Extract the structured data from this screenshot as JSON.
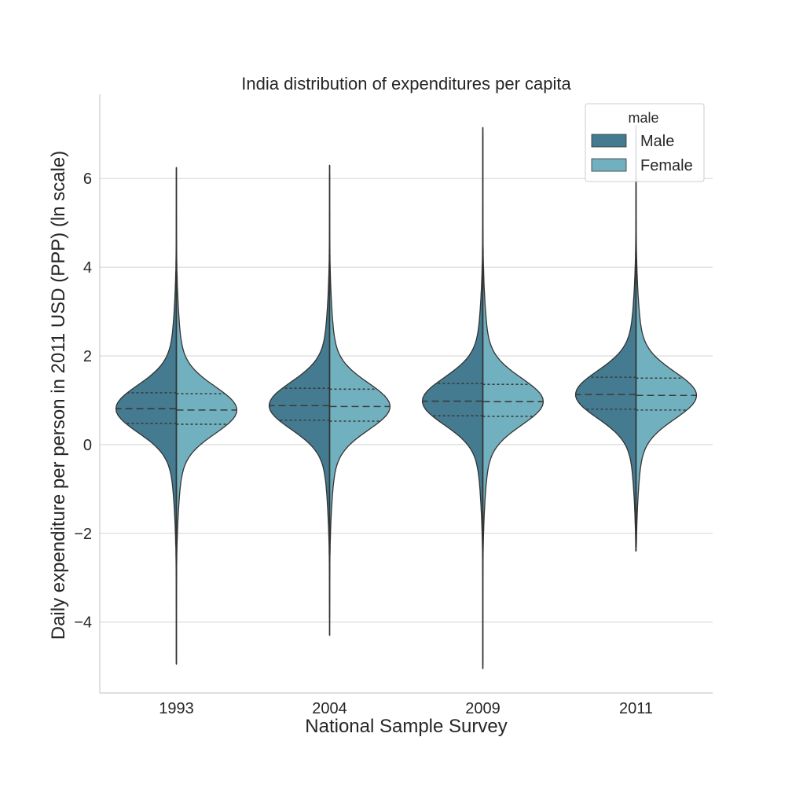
{
  "chart_data": {
    "type": "violin",
    "title": "India distribution of expenditures per capita",
    "xlabel": "National Sample Survey",
    "ylabel": "Daily expenditure per person in 2011 USD (PPP) (ln scale)",
    "categories": [
      "1993",
      "2004",
      "2009",
      "2011"
    ],
    "ylim": [
      -5.6,
      7.9
    ],
    "yticks": [
      {
        "value": -4,
        "label": "−4"
      },
      {
        "value": -2,
        "label": "−2"
      },
      {
        "value": 0,
        "label": "0"
      },
      {
        "value": 2,
        "label": "2"
      },
      {
        "value": 4,
        "label": "4"
      },
      {
        "value": 6,
        "label": "6"
      }
    ],
    "grid": "horizontal",
    "legend": {
      "title": "male",
      "placement": "top-right",
      "entries": [
        {
          "label": "Male",
          "color": "#447b90"
        },
        {
          "label": "Female",
          "color": "#71b1bf"
        }
      ]
    },
    "series": [
      {
        "name": "Male",
        "color": "#447b90",
        "values": [
          {
            "category": "1993",
            "min": -4.95,
            "max": 6.25,
            "q1": 0.48,
            "median": 0.81,
            "q3": 1.17
          },
          {
            "category": "2004",
            "min": -4.3,
            "max": 6.3,
            "q1": 0.55,
            "median": 0.88,
            "q3": 1.27
          },
          {
            "category": "2009",
            "min": -5.05,
            "max": 7.15,
            "q1": 0.65,
            "median": 0.98,
            "q3": 1.38
          },
          {
            "category": "2011",
            "min": -2.4,
            "max": 7.2,
            "q1": 0.8,
            "median": 1.13,
            "q3": 1.52
          }
        ]
      },
      {
        "name": "Female",
        "color": "#71b1bf",
        "values": [
          {
            "category": "1993",
            "min": -4.9,
            "max": 6.2,
            "q1": 0.46,
            "median": 0.78,
            "q3": 1.15
          },
          {
            "category": "2004",
            "min": -3.9,
            "max": 6.1,
            "q1": 0.53,
            "median": 0.86,
            "q3": 1.25
          },
          {
            "category": "2009",
            "min": -4.9,
            "max": 7.0,
            "q1": 0.64,
            "median": 0.97,
            "q3": 1.36
          },
          {
            "category": "2011",
            "min": -2.3,
            "max": 7.0,
            "q1": 0.78,
            "median": 1.11,
            "q3": 1.5
          }
        ]
      }
    ]
  }
}
